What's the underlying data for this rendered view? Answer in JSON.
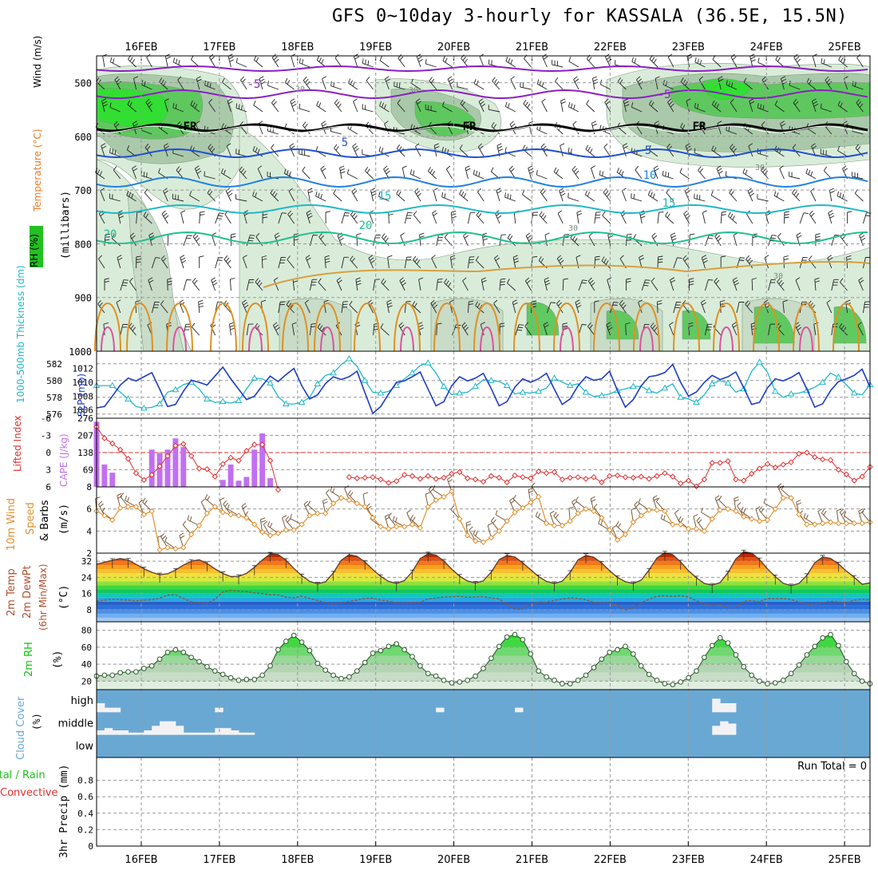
{
  "title": "GFS 0~10day 3-hourly for KASSALA (36.5E, 15.5N)",
  "dates": [
    "16FEB",
    "17FEB",
    "18FEB",
    "19FEB",
    "20FEB",
    "21FEB",
    "22FEB",
    "23FEB",
    "24FEB",
    "25FEB"
  ],
  "colors": {
    "rh": "#22c022",
    "temperature": "#f07820",
    "wind": "#000000",
    "slp": "#1e3cc8",
    "thickness": "#20b8c8",
    "cape": "#c070f0",
    "lifted_index": "#e03030",
    "wind10m": "#e09030",
    "rh2m": "#10c010",
    "cloud": "#6aa8d4",
    "precip": "#22c022"
  },
  "panel_labels": {
    "upper": {
      "rh": "RH (%)",
      "temperature": "Temperature (°C)",
      "wind": "Wind (m/s)",
      "units": "(millibars)"
    },
    "slp": {
      "thickness": "1000-500mb Thickness (dm)",
      "slp": "SLP (mb)"
    },
    "cape": {
      "lifted": "Lifted Index",
      "cape": "CAPE (J/kg)"
    },
    "wind10m": {
      "a": "10m Wind",
      "b": "Speed",
      "c": "& Barbs",
      "units": "(m/s)"
    },
    "temp2m": {
      "a": "2m Temp",
      "b": "2m DewPt",
      "c": "(6hr Min/Max)",
      "units": "(°C)"
    },
    "rh2m": {
      "a": "2m RH",
      "units": "(%)"
    },
    "cloud": {
      "a": "Cloud Cover",
      "units": "(%)"
    },
    "precip": {
      "a": "Total / Rain",
      "b": "Convective",
      "c": "3hr Precip (mm)"
    }
  },
  "cloud_levels": [
    "high",
    "middle",
    "low"
  ],
  "run_total": "Run Total = 0",
  "chart_data": [
    {
      "type": "heatmap",
      "name": "upper",
      "ylabel": "(millibars)",
      "ylim": [
        1000,
        450
      ],
      "yticks": [
        500,
        600,
        700,
        800,
        900,
        1000
      ],
      "contour_labels": [
        "-5",
        "-5",
        "FR",
        "FR",
        "FR",
        "5",
        "5",
        "10",
        "15",
        "15",
        "20",
        "20",
        "30",
        "30",
        "30",
        "30",
        "30"
      ]
    },
    {
      "type": "line",
      "name": "slp_thickness",
      "y_left": {
        "ticks": [
          576,
          578,
          580,
          582
        ],
        "range": [
          575.5,
          583.5
        ]
      },
      "y_right": {
        "ticks": [
          1006,
          1008,
          1010,
          1012
        ],
        "range": [
          1004.8,
          1014.5
        ]
      },
      "series": [
        {
          "name": "SLP (mb)",
          "values": [
            1006.3,
            1006.5,
            1008.0,
            1009.6,
            1010.6,
            1010.2,
            1010.8,
            1011.4,
            1009.0,
            1006.5,
            1006.8,
            1008.7,
            1010.3,
            1010.0,
            1009.6,
            1010.9,
            1012.2,
            1010.5,
            1009.0,
            1007.5,
            1008.0,
            1009.5,
            1010.9,
            1010.1,
            1011.1,
            1012.0,
            1009.5,
            1007.6,
            1008.2,
            1009.8,
            1010.8,
            1010.4,
            1010.8,
            1011.6,
            1008.5,
            1005.5,
            1006.5,
            1008.3,
            1010.0,
            1010.2,
            1010.8,
            1011.5,
            1009.0,
            1006.6,
            1007.2,
            1009.5,
            1010.8,
            1010.2,
            1010.6,
            1011.3,
            1009.1,
            1006.6,
            1007.2,
            1009.3,
            1010.5,
            1010.0,
            1010.5,
            1011.3,
            1009.0,
            1006.8,
            1007.6,
            1009.5,
            1010.8,
            1010.3,
            1010.5,
            1011.6,
            1008.8,
            1006.4,
            1007.5,
            1009.5,
            1010.8,
            1011.0,
            1011.4,
            1012.6,
            1010.0,
            1008.0,
            1008.6,
            1010.0,
            1011.0,
            1010.4,
            1010.8,
            1011.5,
            1009.2,
            1006.8,
            1007.1,
            1009.2,
            1010.5,
            1010.2,
            1010.7,
            1011.4,
            1009.0,
            1006.4,
            1006.9,
            1008.8,
            1010.1,
            1010.5,
            1011.0,
            1011.9,
            1009.3
          ]
        },
        {
          "name": "Thickness (dm)",
          "values": [
            579.4,
            579.4,
            579.4,
            578.6,
            577.8,
            576.9,
            576.7,
            576.8,
            577.2,
            578.6,
            578.9,
            579.5,
            579.8,
            579.0,
            577.8,
            577.4,
            577.5,
            577.3,
            577.6,
            579.0,
            580.3,
            580.2,
            579.7,
            578.1,
            577.2,
            577.2,
            577.4,
            578.0,
            579.6,
            580.6,
            580.9,
            581.9,
            582.6,
            581.7,
            580.0,
            578.6,
            578.5,
            578.7,
            579.4,
            580.2,
            580.9,
            581.8,
            582.1,
            580.9,
            579.3,
            578.3,
            578.5,
            578.6,
            579.3,
            580.1,
            580.0,
            579.9,
            579.4,
            578.4,
            578.6,
            578.5,
            578.7,
            579.1,
            580.3,
            579.8,
            579.4,
            579.6,
            578.6,
            578.1,
            578.2,
            578.4,
            578.8,
            579.0,
            579.3,
            579.3,
            578.8,
            578.5,
            579.1,
            579.6,
            578.0,
            577.8,
            577.4,
            578.3,
            579.6,
            580.0,
            579.7,
            578.6,
            579.0,
            581.1,
            582.2,
            581.0,
            578.7,
            578.0,
            578.4,
            578.5,
            578.8,
            579.2,
            579.8,
            580.9,
            580.4,
            579.5,
            578.5,
            578.3,
            579.5
          ]
        }
      ]
    },
    {
      "type": "bar",
      "name": "cape_lifted",
      "y_left": {
        "label": "Lifted Index",
        "ticks": [
          -6,
          -3,
          0,
          3,
          6
        ],
        "range": [
          -6,
          6
        ]
      },
      "y_right": {
        "label": "CAPE (J/kg)",
        "ticks": [
          69,
          138,
          207,
          276
        ],
        "range": [
          0,
          276
        ]
      },
      "cape_values": [
        262,
        90,
        57,
        0,
        0,
        0,
        0,
        150,
        135,
        150,
        195,
        160,
        0,
        0,
        0,
        0,
        28,
        90,
        25,
        40,
        150,
        215,
        35,
        0,
        0,
        0,
        0,
        0,
        0,
        0,
        0,
        0,
        0,
        0,
        0,
        0,
        0,
        0,
        0,
        0,
        0,
        0,
        0,
        0,
        0,
        0,
        0,
        0,
        0,
        0,
        0,
        0,
        0,
        0,
        0,
        0,
        0,
        0,
        0,
        0,
        0,
        0,
        0,
        0,
        0,
        0,
        0,
        0,
        0,
        0,
        0,
        0,
        0,
        0,
        0,
        0,
        0,
        0,
        0,
        0,
        0,
        0,
        0,
        0,
        0,
        0,
        0,
        0,
        0,
        0,
        0,
        0,
        0,
        0,
        0,
        0,
        0,
        0,
        0
      ],
      "lifted_values": [
        -4.5,
        -2.5,
        -1.6,
        -0.5,
        1.1,
        3.6,
        4.8,
        3.9,
        2.4,
        0.6,
        -1.2,
        -1.5,
        0.6,
        2.8,
        2.9,
        4.2,
        2.0,
        0.9,
        1.4,
        -0.3,
        -1.4,
        -1.4,
        1.4,
        6.5,
        null,
        null,
        null,
        null,
        null,
        null,
        null,
        null,
        4.3,
        4.5,
        4.4,
        4.3,
        4.7,
        5.3,
        5.0,
        3.9,
        4.1,
        4.6,
        4.1,
        4.6,
        4.4,
        3.7,
        3.4,
        4.5,
        4.7,
        5.1,
        4.1,
        4.4,
        5.2,
        4.0,
        4.3,
        4.5,
        3.3,
        3.6,
        3.4,
        4.7,
        4.4,
        4.3,
        4.6,
        4.3,
        5.2,
        4.1,
        4.0,
        4.3,
        4.4,
        4.2,
        4.6,
        4.1,
        3.6,
        4.2,
        5.4,
        4.9,
        5.9,
        4.7,
        1.8,
        1.8,
        1.5,
        4.7,
        4.9,
        3.7,
        2.8,
        2.0,
        2.6,
        2.1,
        1.7,
        0.2,
        0.0,
        0.8,
        1.2,
        1.3,
        3.0,
        3.8,
        4.9,
        4.2,
        2.5
      ]
    },
    {
      "type": "line",
      "name": "wind10m",
      "ylim": [
        2,
        8
      ],
      "yticks": [
        2,
        4,
        6,
        8
      ],
      "values": [
        5.8,
        5.4,
        5.0,
        6.1,
        6.2,
        6.2,
        5.5,
        5.8,
        2.3,
        2.5,
        2.4,
        2.5,
        3.7,
        4.5,
        5.6,
        6.2,
        5.7,
        5.5,
        5.4,
        5.2,
        4.6,
        3.9,
        3.6,
        3.8,
        4.1,
        4.1,
        4.6,
        5.4,
        5.6,
        5.6,
        6.5,
        7.0,
        6.8,
        6.5,
        6.2,
        5.2,
        4.4,
        4.2,
        4.4,
        4.4,
        4.6,
        4.3,
        6.2,
        6.8,
        7.1,
        7.6,
        5.1,
        3.6,
        3.1,
        3.0,
        3.4,
        4.0,
        4.9,
        5.7,
        6.1,
        6.6,
        7.1,
        4.7,
        4.5,
        4.5,
        4.9,
        5.6,
        6.0,
        5.8,
        5.2,
        4.1,
        3.2,
        3.7,
        4.8,
        5.4,
        5.9,
        5.9,
        5.8,
        4.6,
        4.6,
        4.2,
        4.2,
        4.0,
        5.1,
        5.9,
        6.0,
        5.8,
        5.3,
        5.1,
        4.9,
        5.0,
        6.0,
        7.0,
        7.0,
        5.5,
        4.6,
        4.6,
        4.7,
        4.8,
        4.7,
        4.7,
        4.7,
        4.7,
        4.8
      ]
    },
    {
      "type": "area",
      "name": "temp2m",
      "ylim": [
        2,
        36
      ],
      "yticks": [
        8,
        16,
        24,
        32
      ],
      "series": [
        {
          "name": "2m Temp",
          "values": [
            30.5,
            31.5,
            32.5,
            33.3,
            32.6,
            30.5,
            28.3,
            26.5,
            25.3,
            25.8,
            27.6,
            30.1,
            32.0,
            32.7,
            30.9,
            28.2,
            25.9,
            24.4,
            24.5,
            26.0,
            29.0,
            32.6,
            35.6,
            35.3,
            32.5,
            28.4,
            24.8,
            22.0,
            20.8,
            21.8,
            26.2,
            32.5,
            35.2,
            34.4,
            31.6,
            27.8,
            24.5,
            22.0,
            21.0,
            22.4,
            26.8,
            33.3,
            35.7,
            35.0,
            32.1,
            28.1,
            24.6,
            22.2,
            21.2,
            22.3,
            26.6,
            32.7,
            34.9,
            34.1,
            31.2,
            27.8,
            24.4,
            22.0,
            21.0,
            22.1,
            26.5,
            32.7,
            34.9,
            34.0,
            31.1,
            27.3,
            24.0,
            21.9,
            21.0,
            22.6,
            27.6,
            33.6,
            36.2,
            35.2,
            31.7,
            27.3,
            23.8,
            21.0,
            20.2,
            21.4,
            26.3,
            33.1,
            36.7,
            36.0,
            32.8,
            28.2,
            24.4,
            21.1,
            19.9,
            21.0,
            25.0,
            31.2,
            34.1,
            33.4,
            30.7,
            27.2,
            24.1,
            20.6,
            21.3
          ]
        },
        {
          "name": "2m DewPt",
          "values": [
            12.1,
            12.8,
            13.1,
            12.9,
            12.7,
            12.3,
            12.8,
            12.9,
            13.7,
            15.2,
            15.4,
            13.6,
            11.8,
            11.4,
            10.9,
            13.2,
            16.8,
            17.6,
            17.2,
            17.0,
            16.3,
            16.0,
            15.4,
            15.3,
            14.2,
            13.8,
            14.7,
            13.6,
            12.5,
            11.6,
            10.7,
            11.5,
            12.1,
            12.8,
            13.6,
            13.7,
            12.7,
            12.2,
            11.3,
            11.0,
            11.4,
            11.7,
            13.4,
            13.8,
            14.2,
            14.3,
            14.6,
            14.1,
            14.3,
            14.4,
            13.8,
            13.4,
            10.5,
            8.2,
            8.3,
            10.4,
            11.9,
            11.7,
            12.6,
            13.3,
            13.8,
            13.6,
            12.9,
            11.6,
            11.2,
            11.2,
            10.2,
            7.9,
            8.8,
            11.3,
            13.1,
            14.6,
            14.9,
            14.6,
            14.9,
            14.3,
            12.4,
            10.9,
            10.0,
            10.5,
            9.0,
            9.0,
            12.2,
            12.4,
            11.9,
            13.6,
            13.5,
            13.6,
            13.0,
            11.8,
            10.6,
            10.9,
            11.5,
            12.2,
            11.8,
            11.5,
            12.7,
            13.1,
            12.8
          ]
        }
      ]
    },
    {
      "type": "area",
      "name": "rh2m",
      "ylim": [
        10,
        90
      ],
      "yticks": [
        20,
        40,
        60,
        80
      ],
      "values": [
        26,
        27,
        27,
        30,
        31,
        31,
        35,
        38,
        46,
        54,
        57,
        54,
        48,
        43,
        37,
        32,
        28,
        24,
        21,
        22,
        22,
        27,
        38,
        57,
        67,
        74,
        66,
        56,
        41,
        33,
        27,
        23,
        25,
        32,
        42,
        53,
        56,
        61,
        64,
        57,
        49,
        38,
        29,
        26,
        21,
        18,
        19,
        21,
        26,
        35,
        47,
        61,
        72,
        75,
        69,
        52,
        32,
        25,
        21,
        17,
        17,
        21,
        27,
        36,
        46,
        54,
        57,
        61,
        52,
        38,
        28,
        21,
        17,
        16,
        19,
        24,
        32,
        48,
        62,
        71,
        65,
        51,
        37,
        27,
        20,
        17,
        18,
        21,
        29,
        39,
        51,
        61,
        71,
        75,
        62,
        43,
        29,
        20,
        17
      ]
    },
    {
      "type": "bar",
      "name": "cloud_cover",
      "levels": [
        "high",
        "middle",
        "low"
      ],
      "high": [
        40,
        20,
        20,
        0,
        0,
        0,
        0,
        0,
        0,
        0,
        0,
        0,
        0,
        0,
        0,
        20,
        0,
        0,
        0,
        0,
        0,
        0,
        0,
        0,
        0,
        0,
        0,
        0,
        0,
        0,
        0,
        0,
        0,
        0,
        0,
        0,
        0,
        0,
        0,
        0,
        0,
        0,
        0,
        20,
        0,
        0,
        0,
        0,
        0,
        0,
        0,
        0,
        0,
        20,
        0,
        0,
        0,
        0,
        0,
        0,
        0,
        0,
        0,
        0,
        0,
        0,
        0,
        0,
        0,
        0,
        0,
        0,
        0,
        0,
        0,
        0,
        0,
        0,
        60,
        40,
        40,
        0,
        0,
        0,
        0,
        0,
        0,
        0,
        0,
        0,
        0,
        0,
        0,
        0,
        0,
        0,
        0,
        0,
        0
      ],
      "middle": [
        20,
        30,
        20,
        20,
        10,
        10,
        20,
        40,
        60,
        60,
        40,
        10,
        10,
        10,
        10,
        30,
        30,
        20,
        10,
        10,
        0,
        0,
        0,
        0,
        0,
        0,
        0,
        0,
        0,
        0,
        0,
        0,
        0,
        0,
        0,
        0,
        0,
        0,
        0,
        0,
        0,
        0,
        0,
        0,
        0,
        0,
        0,
        0,
        0,
        0,
        0,
        0,
        0,
        0,
        0,
        0,
        0,
        0,
        0,
        0,
        0,
        0,
        0,
        0,
        0,
        0,
        0,
        0,
        0,
        0,
        0,
        0,
        0,
        0,
        0,
        0,
        0,
        0,
        40,
        60,
        50,
        0,
        0,
        0,
        0,
        0,
        0,
        0,
        0,
        0,
        0,
        0,
        0,
        0,
        0,
        0,
        0,
        0,
        0
      ]
    },
    {
      "type": "bar",
      "name": "precip",
      "ylabel": "3hr Precip (mm)",
      "ylim": [
        0,
        1
      ],
      "yticks": [
        0,
        0.2,
        0.4,
        0.6,
        0.8
      ],
      "values": []
    }
  ]
}
